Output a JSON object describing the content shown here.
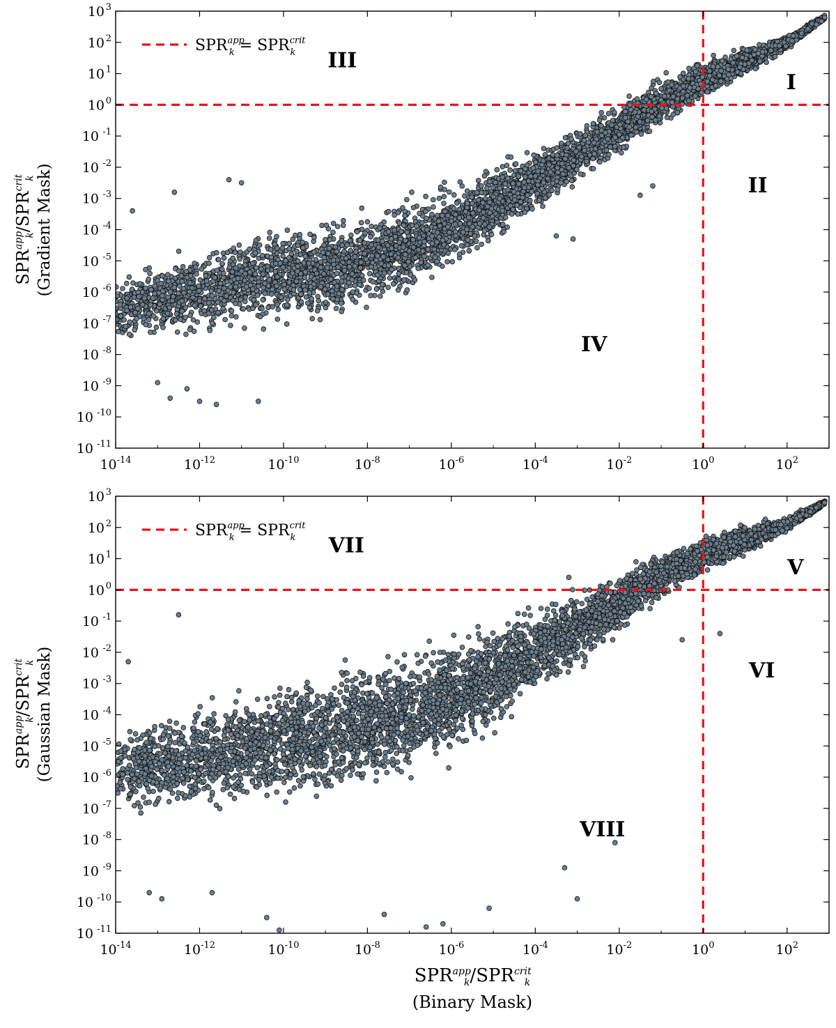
{
  "figure": {
    "xlabel_top": "SPR_k^app/SPR_k^crit",
    "xlabel_bottom": "(Binary Mask)"
  },
  "chart_data": [
    {
      "type": "scatter",
      "id": "top",
      "ylabel_top": "SPR_k^app/SPR_k^crit",
      "ylabel_bottom": "(Gradient Mask)",
      "x_scale": "log",
      "y_scale": "log",
      "xlim_exp": [
        -14,
        3
      ],
      "ylim_exp": [
        -11,
        3
      ],
      "x_tick_exps": [
        -14,
        -12,
        -10,
        -8,
        -6,
        -4,
        -2,
        0,
        2
      ],
      "y_tick_exps": [
        -11,
        -10,
        -9,
        -8,
        -7,
        -6,
        -5,
        -4,
        -3,
        -2,
        -1,
        0,
        1,
        2,
        3
      ],
      "threshold": {
        "x": 1,
        "y": 1
      },
      "legend": {
        "label": "SPR_k^app = SPR_k^crit",
        "position": "top-left"
      },
      "point_color": "#6c7e8c",
      "regions": [
        {
          "label": "I",
          "x_exp": 2.1,
          "y_exp": 0.5
        },
        {
          "label": "II",
          "x_exp": 1.3,
          "y_exp": -2.8
        },
        {
          "label": "III",
          "x_exp": -8.6,
          "y_exp": 1.2
        },
        {
          "label": "IV",
          "x_exp": -2.6,
          "y_exp": -7.9
        }
      ],
      "band": {
        "x_exps": [
          -14,
          -13,
          -12,
          -11,
          -10,
          -9,
          -8,
          -7,
          -6,
          -5,
          -4,
          -3,
          -2,
          -1,
          0,
          1,
          2,
          2.9
        ],
        "center_exps": [
          -6.5,
          -6.3,
          -6.0,
          -5.7,
          -5.5,
          -5.3,
          -5.0,
          -4.5,
          -3.9,
          -3.2,
          -2.4,
          -1.6,
          -0.8,
          0.1,
          0.8,
          1.4,
          2.0,
          2.8
        ],
        "halfwidth_exps": [
          1.2,
          1.5,
          1.7,
          1.8,
          1.9,
          1.9,
          1.9,
          1.8,
          1.7,
          1.5,
          1.3,
          1.1,
          1.0,
          0.9,
          0.8,
          0.6,
          0.3,
          0.1
        ]
      },
      "outliers": [
        {
          "x_exp": -11.3,
          "y_exp": -2.4
        },
        {
          "x_exp": -12.6,
          "y_exp": -2.8
        },
        {
          "x_exp": -11.0,
          "y_exp": -2.5
        },
        {
          "x_exp": -13.6,
          "y_exp": -3.4
        },
        {
          "x_exp": -11.6,
          "y_exp": -9.6
        },
        {
          "x_exp": -12.7,
          "y_exp": -9.4
        },
        {
          "x_exp": -12.0,
          "y_exp": -9.5
        },
        {
          "x_exp": -10.6,
          "y_exp": -9.5
        },
        {
          "x_exp": -3.5,
          "y_exp": -4.2
        },
        {
          "x_exp": -3.1,
          "y_exp": -4.3
        },
        {
          "x_exp": -1.2,
          "y_exp": -2.6
        },
        {
          "x_exp": -1.5,
          "y_exp": -2.9
        },
        {
          "x_exp": -13.0,
          "y_exp": -8.9
        },
        {
          "x_exp": -12.3,
          "y_exp": -9.1
        }
      ]
    },
    {
      "type": "scatter",
      "id": "bottom",
      "ylabel_top": "SPR_k^app/SPR_k^crit",
      "ylabel_bottom": "(Gaussian Mask)",
      "x_scale": "log",
      "y_scale": "log",
      "xlim_exp": [
        -14,
        3
      ],
      "ylim_exp": [
        -11,
        3
      ],
      "x_tick_exps": [
        -14,
        -12,
        -10,
        -8,
        -6,
        -4,
        -2,
        0,
        2
      ],
      "y_tick_exps": [
        -11,
        -10,
        -9,
        -8,
        -7,
        -6,
        -5,
        -4,
        -3,
        -2,
        -1,
        0,
        1,
        2,
        3
      ],
      "threshold": {
        "x": 1,
        "y": 1
      },
      "legend": {
        "label": "SPR_k^app = SPR_k^crit",
        "position": "top-left"
      },
      "point_color": "#6c7e8c",
      "regions": [
        {
          "label": "V",
          "x_exp": 2.2,
          "y_exp": 0.5
        },
        {
          "label": "VI",
          "x_exp": 1.4,
          "y_exp": -2.8
        },
        {
          "label": "VII",
          "x_exp": -8.5,
          "y_exp": 1.2
        },
        {
          "label": "VIII",
          "x_exp": -2.4,
          "y_exp": -7.9
        }
      ],
      "band": {
        "x_exps": [
          -14,
          -13,
          -12,
          -11,
          -10,
          -9,
          -8,
          -7,
          -6,
          -5,
          -4,
          -3,
          -2,
          -1,
          0,
          1,
          2,
          2.9
        ],
        "center_exps": [
          -5.8,
          -5.6,
          -5.4,
          -5.1,
          -4.8,
          -4.6,
          -4.3,
          -3.9,
          -3.4,
          -2.8,
          -2.0,
          -1.2,
          -0.4,
          0.5,
          1.1,
          1.6,
          2.1,
          2.8
        ],
        "halfwidth_exps": [
          1.5,
          1.9,
          2.1,
          2.3,
          2.4,
          2.5,
          2.5,
          2.4,
          2.3,
          2.1,
          1.8,
          1.5,
          1.2,
          1.0,
          0.8,
          0.6,
          0.3,
          0.1
        ]
      },
      "outliers": [
        {
          "x_exp": -12.5,
          "y_exp": -0.8
        },
        {
          "x_exp": -13.7,
          "y_exp": -2.3
        },
        {
          "x_exp": -10.1,
          "y_exp": -10.9
        },
        {
          "x_exp": -10.4,
          "y_exp": -10.5
        },
        {
          "x_exp": -6.6,
          "y_exp": -10.8
        },
        {
          "x_exp": -6.2,
          "y_exp": -10.7
        },
        {
          "x_exp": -7.6,
          "y_exp": -10.4
        },
        {
          "x_exp": -3.0,
          "y_exp": -9.9
        },
        {
          "x_exp": -2.1,
          "y_exp": -8.1
        },
        {
          "x_exp": -3.3,
          "y_exp": -8.9
        },
        {
          "x_exp": -1.6,
          "y_exp": 0.9
        },
        {
          "x_exp": -3.2,
          "y_exp": 0.4
        },
        {
          "x_exp": -0.5,
          "y_exp": -1.6
        },
        {
          "x_exp": 0.4,
          "y_exp": -1.4
        },
        {
          "x_exp": -13.2,
          "y_exp": -9.7
        },
        {
          "x_exp": -12.9,
          "y_exp": -9.9
        },
        {
          "x_exp": -11.7,
          "y_exp": -9.7
        },
        {
          "x_exp": -5.1,
          "y_exp": -10.2
        }
      ]
    }
  ]
}
